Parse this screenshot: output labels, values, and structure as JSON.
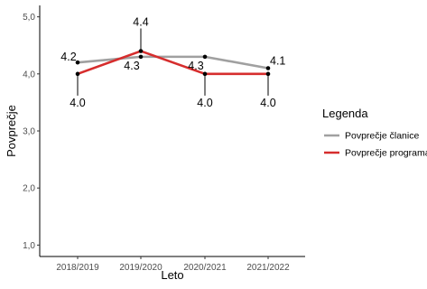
{
  "chart_data": {
    "type": "line",
    "title": "",
    "xlabel": "Leto",
    "ylabel": "Povprečje",
    "categories": [
      "2018/2019",
      "2019/2020",
      "2020/2021",
      "2021/2022"
    ],
    "ylim": [
      0.8,
      5.2
    ],
    "yticks": [
      1.0,
      2.0,
      3.0,
      4.0,
      5.0
    ],
    "ytick_labels": [
      "1,0",
      "2,0",
      "3,0",
      "4,0",
      "5,0"
    ],
    "grid": false,
    "legend": {
      "title": "Legenda",
      "position": "right"
    },
    "series": [
      {
        "name": "Povprečje članice",
        "color": "#a0a0a0",
        "values": [
          4.2,
          4.3,
          4.3,
          4.1
        ],
        "labels": [
          "4.2",
          "4.3",
          "4.3",
          "4.1"
        ]
      },
      {
        "name": "Povprečje programa",
        "color": "#d62d2d",
        "values": [
          4.0,
          4.4,
          4.0,
          4.0
        ],
        "labels": [
          "4.0",
          "4.4",
          "4.0",
          "4.0"
        ]
      }
    ]
  }
}
